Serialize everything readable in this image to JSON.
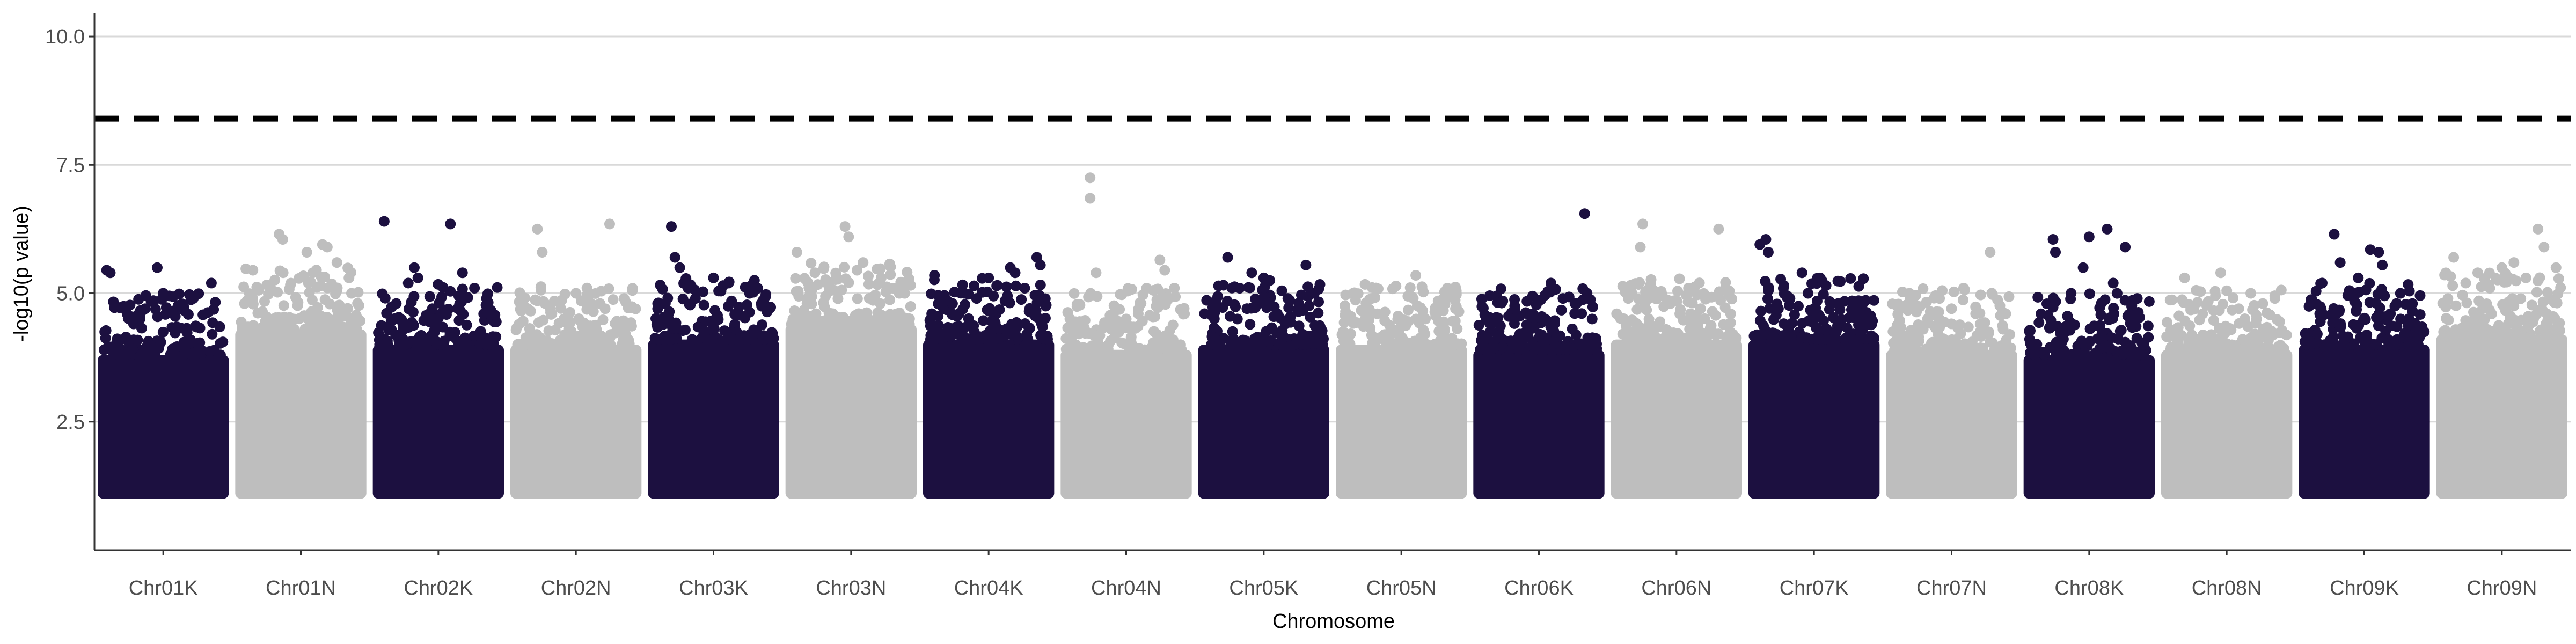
{
  "chart_data": {
    "type": "scatter",
    "subtype": "manhattan",
    "title": "",
    "xlabel": "Chromosome",
    "ylabel": "-log10(p value)",
    "ylim": [
      0.0,
      10.45
    ],
    "y_ticks": [
      2.5,
      5.0,
      7.5,
      10.0
    ],
    "y_tick_labels": [
      "2.5",
      "5.0",
      "7.5",
      "10.0"
    ],
    "grid": {
      "horizontal_major": true,
      "vertical": false
    },
    "threshold": {
      "value": 8.4,
      "style": "dashed",
      "color": "#000000"
    },
    "point_min_y": 1.0,
    "colors": {
      "odd": "#1c1040",
      "even": "#bebebe"
    },
    "categories": [
      "Chr01K",
      "Chr01N",
      "Chr02K",
      "Chr02N",
      "Chr03K",
      "Chr03N",
      "Chr04K",
      "Chr04N",
      "Chr05K",
      "Chr05N",
      "Chr06K",
      "Chr06N",
      "Chr07K",
      "Chr07N",
      "Chr08K",
      "Chr08N",
      "Chr09K",
      "Chr09N"
    ],
    "series": [
      {
        "name": "Chr01K",
        "color": "#1c1040",
        "dense_top": 3.8,
        "peaks": [
          [
            0.03,
            5.45
          ],
          [
            0.06,
            5.4
          ],
          [
            0.45,
            5.5
          ],
          [
            0.5,
            5.0
          ],
          [
            0.55,
            4.95
          ],
          [
            0.9,
            5.2
          ],
          [
            0.2,
            4.6
          ],
          [
            0.75,
            4.9
          ],
          [
            0.35,
            4.7
          ],
          [
            0.6,
            4.55
          ]
        ]
      },
      {
        "name": "Chr01N",
        "color": "#bebebe",
        "dense_top": 4.3,
        "peaks": [
          [
            0.32,
            6.15
          ],
          [
            0.35,
            6.05
          ],
          [
            0.55,
            5.8
          ],
          [
            0.68,
            5.95
          ],
          [
            0.72,
            5.9
          ],
          [
            0.8,
            5.6
          ],
          [
            0.1,
            4.9
          ],
          [
            0.9,
            5.3
          ],
          [
            0.25,
            5.1
          ],
          [
            0.6,
            5.4
          ]
        ]
      },
      {
        "name": "Chr02K",
        "color": "#1c1040",
        "dense_top": 4.0,
        "peaks": [
          [
            0.05,
            6.4
          ],
          [
            0.3,
            5.5
          ],
          [
            0.33,
            5.3
          ],
          [
            0.6,
            6.35
          ],
          [
            0.7,
            5.4
          ],
          [
            0.8,
            5.1
          ],
          [
            0.15,
            4.8
          ],
          [
            0.45,
            4.7
          ],
          [
            0.9,
            4.9
          ],
          [
            0.25,
            5.2
          ]
        ]
      },
      {
        "name": "Chr02N",
        "color": "#bebebe",
        "dense_top": 4.0,
        "peaks": [
          [
            0.18,
            6.25
          ],
          [
            0.22,
            5.8
          ],
          [
            0.5,
            5.0
          ],
          [
            0.7,
            4.8
          ],
          [
            0.78,
            6.35
          ],
          [
            0.9,
            4.9
          ],
          [
            0.3,
            4.6
          ],
          [
            0.1,
            4.7
          ],
          [
            0.6,
            4.9
          ],
          [
            0.4,
            4.5
          ]
        ]
      },
      {
        "name": "Chr03K",
        "color": "#1c1040",
        "dense_top": 4.1,
        "peaks": [
          [
            0.15,
            6.3
          ],
          [
            0.18,
            5.7
          ],
          [
            0.22,
            5.5
          ],
          [
            0.5,
            5.3
          ],
          [
            0.58,
            5.15
          ],
          [
            0.8,
            5.0
          ],
          [
            0.35,
            4.9
          ],
          [
            0.65,
            4.85
          ],
          [
            0.9,
            4.75
          ],
          [
            0.1,
            4.8
          ]
        ]
      },
      {
        "name": "Chr03N",
        "color": "#bebebe",
        "dense_top": 4.4,
        "peaks": [
          [
            0.05,
            5.8
          ],
          [
            0.2,
            5.4
          ],
          [
            0.45,
            6.3
          ],
          [
            0.48,
            6.1
          ],
          [
            0.6,
            5.6
          ],
          [
            0.75,
            5.3
          ],
          [
            0.9,
            5.0
          ],
          [
            0.3,
            5.2
          ],
          [
            0.55,
            5.45
          ],
          [
            0.85,
            5.1
          ]
        ]
      },
      {
        "name": "Chr04K",
        "color": "#1c1040",
        "dense_top": 4.1,
        "peaks": [
          [
            0.05,
            5.35
          ],
          [
            0.3,
            5.0
          ],
          [
            0.5,
            5.3
          ],
          [
            0.68,
            5.5
          ],
          [
            0.72,
            5.4
          ],
          [
            0.9,
            5.7
          ],
          [
            0.93,
            5.55
          ],
          [
            0.2,
            4.8
          ],
          [
            0.4,
            4.9
          ],
          [
            0.8,
            5.1
          ]
        ]
      },
      {
        "name": "Chr04N",
        "color": "#bebebe",
        "dense_top": 3.9,
        "peaks": [
          [
            0.2,
            7.25
          ],
          [
            0.2,
            6.85
          ],
          [
            0.25,
            5.4
          ],
          [
            0.78,
            5.65
          ],
          [
            0.82,
            5.45
          ],
          [
            0.9,
            5.1
          ],
          [
            0.5,
            4.5
          ],
          [
            0.6,
            4.6
          ],
          [
            0.1,
            4.4
          ],
          [
            0.4,
            4.3
          ]
        ]
      },
      {
        "name": "Chr05K",
        "color": "#1c1040",
        "dense_top": 4.0,
        "peaks": [
          [
            0.2,
            5.7
          ],
          [
            0.4,
            5.4
          ],
          [
            0.5,
            5.3
          ],
          [
            0.55,
            5.25
          ],
          [
            0.85,
            5.55
          ],
          [
            0.92,
            5.0
          ],
          [
            0.3,
            5.1
          ],
          [
            0.7,
            4.9
          ],
          [
            0.1,
            4.8
          ],
          [
            0.65,
            5.05
          ]
        ]
      },
      {
        "name": "Chr05N",
        "color": "#bebebe",
        "dense_top": 4.0,
        "peaks": [
          [
            0.1,
            5.0
          ],
          [
            0.3,
            4.6
          ],
          [
            0.62,
            5.35
          ],
          [
            0.85,
            4.9
          ],
          [
            0.5,
            4.4
          ],
          [
            0.7,
            4.5
          ],
          [
            0.2,
            4.5
          ],
          [
            0.95,
            4.7
          ]
        ]
      },
      {
        "name": "Chr06K",
        "color": "#1c1040",
        "dense_top": 3.9,
        "peaks": [
          [
            0.15,
            4.95
          ],
          [
            0.3,
            4.7
          ],
          [
            0.6,
            5.2
          ],
          [
            0.7,
            4.9
          ],
          [
            0.88,
            6.55
          ],
          [
            0.9,
            5.0
          ],
          [
            0.45,
            4.6
          ],
          [
            0.8,
            4.8
          ],
          [
            0.2,
            4.85
          ]
        ]
      },
      {
        "name": "Chr06N",
        "color": "#bebebe",
        "dense_top": 4.1,
        "peaks": [
          [
            0.22,
            6.35
          ],
          [
            0.2,
            5.9
          ],
          [
            0.3,
            5.0
          ],
          [
            0.85,
            6.25
          ],
          [
            0.6,
            5.1
          ],
          [
            0.7,
            4.7
          ],
          [
            0.45,
            4.8
          ],
          [
            0.1,
            4.9
          ],
          [
            0.95,
            4.6
          ]
        ]
      },
      {
        "name": "Chr07K",
        "color": "#1c1040",
        "dense_top": 4.1,
        "peaks": [
          [
            0.05,
            5.95
          ],
          [
            0.1,
            6.05
          ],
          [
            0.12,
            5.8
          ],
          [
            0.4,
            5.4
          ],
          [
            0.6,
            5.15
          ],
          [
            0.45,
            5.0
          ],
          [
            0.3,
            4.9
          ],
          [
            0.7,
            4.8
          ],
          [
            0.85,
            4.7
          ],
          [
            0.55,
            5.3
          ]
        ]
      },
      {
        "name": "Chr07N",
        "color": "#bebebe",
        "dense_top": 3.9,
        "peaks": [
          [
            0.15,
            5.0
          ],
          [
            0.4,
            4.9
          ],
          [
            0.6,
            5.1
          ],
          [
            0.82,
            5.8
          ],
          [
            0.7,
            4.6
          ],
          [
            0.3,
            4.5
          ],
          [
            0.95,
            4.6
          ],
          [
            0.5,
            4.7
          ]
        ]
      },
      {
        "name": "Chr08K",
        "color": "#1c1040",
        "dense_top": 3.8,
        "peaks": [
          [
            0.2,
            6.05
          ],
          [
            0.22,
            5.8
          ],
          [
            0.45,
            5.5
          ],
          [
            0.5,
            6.1
          ],
          [
            0.65,
            6.25
          ],
          [
            0.8,
            5.9
          ],
          [
            0.35,
            5.0
          ],
          [
            0.7,
            5.2
          ],
          [
            0.9,
            4.9
          ],
          [
            0.1,
            4.6
          ]
        ]
      },
      {
        "name": "Chr08N",
        "color": "#bebebe",
        "dense_top": 3.9,
        "peaks": [
          [
            0.15,
            5.3
          ],
          [
            0.45,
            5.4
          ],
          [
            0.5,
            5.05
          ],
          [
            0.7,
            5.0
          ],
          [
            0.9,
            4.9
          ],
          [
            0.3,
            4.6
          ],
          [
            0.6,
            4.7
          ],
          [
            0.8,
            4.8
          ]
        ]
      },
      {
        "name": "Chr09K",
        "color": "#1c1040",
        "dense_top": 4.0,
        "peaks": [
          [
            0.25,
            6.15
          ],
          [
            0.3,
            5.6
          ],
          [
            0.45,
            5.3
          ],
          [
            0.55,
            5.85
          ],
          [
            0.62,
            5.8
          ],
          [
            0.65,
            5.55
          ],
          [
            0.4,
            5.0
          ],
          [
            0.8,
            5.0
          ],
          [
            0.15,
            5.2
          ],
          [
            0.9,
            4.8
          ]
        ]
      },
      {
        "name": "Chr09N",
        "color": "#bebebe",
        "dense_top": 4.2,
        "peaks": [
          [
            0.1,
            5.7
          ],
          [
            0.3,
            5.4
          ],
          [
            0.5,
            5.5
          ],
          [
            0.6,
            5.6
          ],
          [
            0.8,
            6.25
          ],
          [
            0.85,
            5.9
          ],
          [
            0.7,
            5.3
          ],
          [
            0.95,
            5.5
          ],
          [
            0.2,
            5.2
          ],
          [
            0.4,
            5.1
          ]
        ]
      }
    ]
  }
}
